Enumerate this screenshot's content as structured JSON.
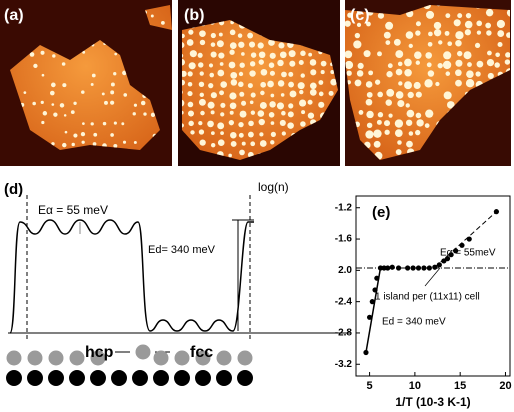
{
  "panels": {
    "a": "(a)",
    "b": "(b)",
    "c": "(c)"
  },
  "diagram": {
    "label": "(d)",
    "alpha_energy": "Eα = 55 meV",
    "d_energy": "Ed= 340 meV",
    "hcp": "hcp",
    "fcc": "fcc",
    "y_label": "log(n)"
  },
  "chart_data": {
    "type": "scatter",
    "title": "(e)",
    "x_label": "1/T (10-3 K-1)",
    "x": [
      4.6,
      5.0,
      5.3,
      5.6,
      5.8,
      6.2,
      6.6,
      7.0,
      7.5,
      8.2,
      9.2,
      9.8,
      10.4,
      11.0,
      11.6,
      12.2,
      12.7,
      13.2,
      13.6,
      14.0,
      14.5,
      15.2,
      16.0,
      19.0
    ],
    "values": [
      -3.05,
      -2.6,
      -2.4,
      -2.25,
      -2.1,
      -1.97,
      -1.97,
      -1.97,
      -1.96,
      -1.97,
      -1.97,
      -1.97,
      -1.97,
      -1.97,
      -1.97,
      -1.96,
      -1.93,
      -1.88,
      -1.85,
      -1.8,
      -1.75,
      -1.68,
      -1.6,
      -1.25
    ],
    "color": "#000000",
    "xlim": [
      3.5,
      20.5
    ],
    "xticks": [
      5,
      10,
      15,
      20
    ],
    "ylim": [
      -3.35,
      -1.05
    ],
    "yticks": [
      -1.2,
      -1.6,
      {
        "value": -2.0,
        "label": "2.0"
      },
      -2.4,
      -2.8,
      -3.2
    ],
    "annotations": [
      {
        "text": "Eα = 55meV"
      },
      {
        "text": "1 island per (11x11) cell",
        "value": -1.97
      },
      {
        "text": "Ed = 340 meV"
      }
    ]
  }
}
